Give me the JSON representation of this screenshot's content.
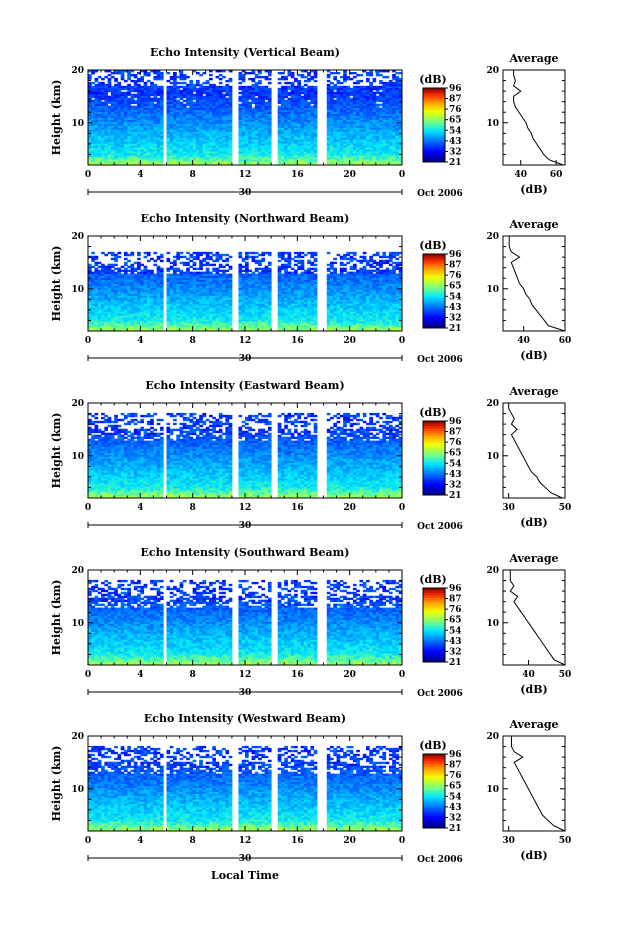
{
  "figure": {
    "xlabel": "Local Time",
    "day_label": "30",
    "month_label": "Oct 2006",
    "ylabel": "Height (km)",
    "colorbar_title": "(dB)",
    "avg_title": "Average",
    "avg_xlabel": "(dB)"
  },
  "chart_data": [
    {
      "type": "heatmap",
      "title": "Echo Intensity (Vertical Beam)",
      "x_ticks": [
        "0",
        "4",
        "8",
        "12",
        "16",
        "20",
        "0"
      ],
      "xlim": [
        0,
        24
      ],
      "y_ticks": [
        "10",
        "20"
      ],
      "ylim": [
        2,
        20
      ],
      "colorbar_ticks": [
        "96",
        "87",
        "76",
        "65",
        "54",
        "43",
        "32",
        "21"
      ],
      "colorbar_range": [
        21,
        96
      ],
      "data_gaps_hours": [
        [
          5.8,
          6.0
        ],
        [
          10.9,
          11.5
        ],
        [
          12.4,
          12.55
        ],
        [
          12.9,
          13.05
        ],
        [
          13.4,
          13.55
        ],
        [
          14.0,
          14.4
        ],
        [
          17.6,
          18.2
        ]
      ],
      "echo_top_km": 19,
      "avg_profile": {
        "x_ticks": [
          "40",
          "60"
        ],
        "xlim": [
          30,
          65
        ],
        "y_ticks": [
          "10",
          "20"
        ],
        "height_km": [
          2,
          3,
          4,
          5,
          6,
          7,
          8,
          9,
          10,
          11,
          12,
          13,
          14,
          15,
          16,
          17,
          18,
          19,
          20
        ],
        "db": [
          64,
          56,
          53,
          51,
          49,
          47,
          46,
          44,
          43,
          41,
          39,
          37,
          36,
          36,
          40,
          36,
          37,
          36,
          36
        ]
      }
    },
    {
      "type": "heatmap",
      "title": "Echo Intensity (Northward Beam)",
      "x_ticks": [
        "0",
        "4",
        "8",
        "12",
        "16",
        "20",
        "0"
      ],
      "xlim": [
        0,
        24
      ],
      "y_ticks": [
        "10",
        "20"
      ],
      "ylim": [
        2,
        20
      ],
      "colorbar_ticks": [
        "96",
        "87",
        "76",
        "65",
        "54",
        "43",
        "32",
        "21"
      ],
      "colorbar_range": [
        21,
        96
      ],
      "data_gaps_hours": [
        [
          5.8,
          6.0
        ],
        [
          10.9,
          11.5
        ],
        [
          12.4,
          12.55
        ],
        [
          12.9,
          13.05
        ],
        [
          13.4,
          13.55
        ],
        [
          14.0,
          14.4
        ],
        [
          17.6,
          18.2
        ]
      ],
      "echo_top_km": 16,
      "avg_profile": {
        "x_ticks": [
          "40",
          "60"
        ],
        "xlim": [
          30,
          60
        ],
        "y_ticks": [
          "10",
          "20"
        ],
        "height_km": [
          2,
          3,
          4,
          5,
          6,
          7,
          8,
          9,
          10,
          11,
          12,
          13,
          14,
          15,
          16,
          17,
          18,
          19,
          20
        ],
        "db": [
          60,
          52,
          50,
          48,
          46,
          44,
          43,
          41,
          40,
          38,
          37,
          36,
          35,
          34,
          38,
          34,
          33,
          33,
          33
        ]
      }
    },
    {
      "type": "heatmap",
      "title": "Echo Intensity (Eastward Beam)",
      "x_ticks": [
        "0",
        "4",
        "8",
        "12",
        "16",
        "20",
        "0"
      ],
      "xlim": [
        0,
        24
      ],
      "y_ticks": [
        "10",
        "20"
      ],
      "ylim": [
        2,
        20
      ],
      "colorbar_ticks": [
        "96",
        "87",
        "76",
        "65",
        "54",
        "43",
        "32",
        "21"
      ],
      "colorbar_range": [
        21,
        96
      ],
      "data_gaps_hours": [
        [
          5.8,
          6.0
        ],
        [
          10.9,
          11.5
        ],
        [
          12.4,
          12.55
        ],
        [
          12.9,
          13.05
        ],
        [
          13.4,
          13.55
        ],
        [
          14.0,
          14.4
        ],
        [
          17.6,
          18.2
        ]
      ],
      "echo_top_km": 17,
      "avg_profile": {
        "x_ticks": [
          "30",
          "50"
        ],
        "xlim": [
          28,
          50
        ],
        "y_ticks": [
          "10",
          "20"
        ],
        "height_km": [
          2,
          3,
          4,
          5,
          6,
          7,
          8,
          9,
          10,
          11,
          12,
          13,
          14,
          15,
          16,
          17,
          18,
          19,
          20
        ],
        "db": [
          49,
          45,
          43,
          41,
          40,
          38,
          37,
          36,
          35,
          34,
          33,
          32,
          31,
          33,
          31,
          32,
          31,
          30,
          30
        ]
      }
    },
    {
      "type": "heatmap",
      "title": "Echo Intensity (Southward Beam)",
      "x_ticks": [
        "0",
        "4",
        "8",
        "12",
        "16",
        "20",
        "0"
      ],
      "xlim": [
        0,
        24
      ],
      "y_ticks": [
        "10",
        "20"
      ],
      "ylim": [
        2,
        20
      ],
      "colorbar_ticks": [
        "96",
        "87",
        "76",
        "65",
        "54",
        "43",
        "32",
        "21"
      ],
      "colorbar_range": [
        21,
        96
      ],
      "data_gaps_hours": [
        [
          5.8,
          6.0
        ],
        [
          10.9,
          11.5
        ],
        [
          12.4,
          12.55
        ],
        [
          12.9,
          13.05
        ],
        [
          13.4,
          13.55
        ],
        [
          14.0,
          14.4
        ],
        [
          17.6,
          18.2
        ]
      ],
      "echo_top_km": 17,
      "avg_profile": {
        "x_ticks": [
          "40",
          "50"
        ],
        "xlim": [
          33,
          50
        ],
        "y_ticks": [
          "10",
          "20"
        ],
        "height_km": [
          2,
          3,
          4,
          5,
          6,
          7,
          8,
          9,
          10,
          11,
          12,
          13,
          14,
          15,
          16,
          17,
          18,
          19,
          20
        ],
        "db": [
          50,
          47,
          46,
          45,
          44,
          43,
          42,
          41,
          40,
          39,
          38,
          37,
          36,
          37,
          35,
          36,
          35,
          35,
          35
        ]
      }
    },
    {
      "type": "heatmap",
      "title": "Echo Intensity (Westward Beam)",
      "x_ticks": [
        "0",
        "4",
        "8",
        "12",
        "16",
        "20",
        "0"
      ],
      "xlim": [
        0,
        24
      ],
      "y_ticks": [
        "10",
        "20"
      ],
      "ylim": [
        2,
        20
      ],
      "colorbar_ticks": [
        "96",
        "87",
        "76",
        "65",
        "54",
        "43",
        "32",
        "21"
      ],
      "colorbar_range": [
        21,
        96
      ],
      "data_gaps_hours": [
        [
          5.8,
          6.0
        ],
        [
          10.9,
          11.5
        ],
        [
          12.4,
          12.55
        ],
        [
          12.9,
          13.05
        ],
        [
          13.4,
          13.55
        ],
        [
          14.0,
          14.4
        ],
        [
          17.6,
          18.2
        ]
      ],
      "echo_top_km": 17,
      "avg_profile": {
        "x_ticks": [
          "30",
          "50"
        ],
        "xlim": [
          28,
          50
        ],
        "y_ticks": [
          "10",
          "20"
        ],
        "height_km": [
          2,
          3,
          4,
          5,
          6,
          7,
          8,
          9,
          10,
          11,
          12,
          13,
          14,
          15,
          16,
          17,
          18,
          19,
          20
        ],
        "db": [
          50,
          46,
          44,
          42,
          41,
          40,
          39,
          38,
          37,
          36,
          35,
          34,
          33,
          32,
          35,
          32,
          31,
          31,
          31
        ]
      }
    }
  ]
}
